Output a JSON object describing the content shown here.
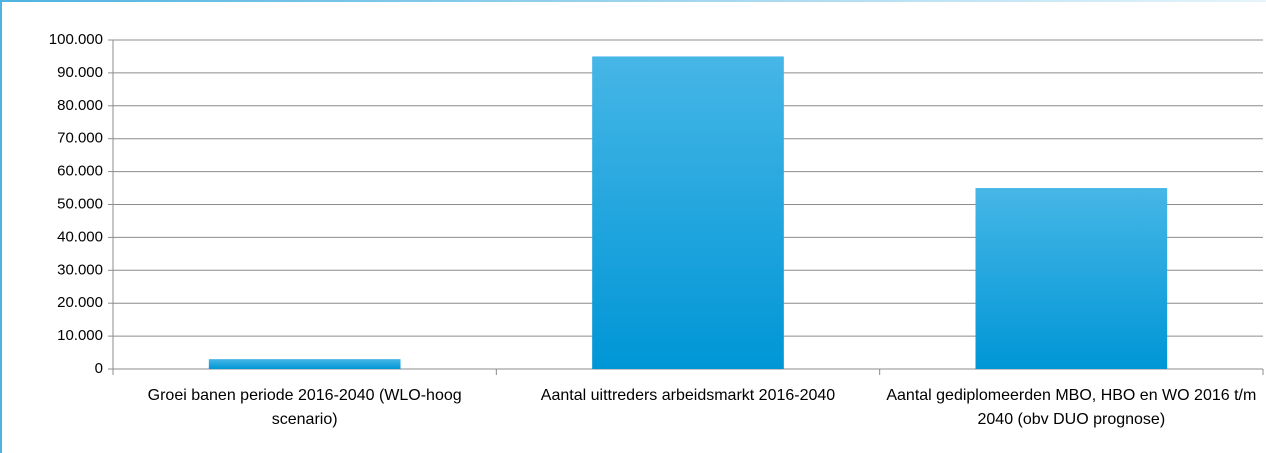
{
  "chart_data": {
    "type": "bar",
    "categories": [
      "Groei banen periode 2016-2040 (WLO-hoog scenario)",
      "Aantal uittreders arbeidsmarkt 2016-2040",
      "Aantal gediplomeerden MBO, HBO en WO 2016 t/m 2040 (obv DUO prognose)"
    ],
    "values": [
      3000,
      95000,
      55000
    ],
    "color": "#0096d6",
    "ylim": [
      0,
      100000
    ],
    "yticks": [
      0,
      {
        "value": 10000,
        "label": "10.000"
      },
      {
        "value": 20000,
        "label": "20.000"
      },
      {
        "value": 30000,
        "label": "30.000"
      },
      {
        "value": 40000,
        "label": "40.000"
      },
      {
        "value": 50000,
        "label": "50.000"
      },
      {
        "value": 60000,
        "label": "60.000"
      },
      {
        "value": 70000,
        "label": "70.000"
      },
      {
        "value": 80000,
        "label": "80.000"
      },
      {
        "value": 90000,
        "label": "90.000"
      },
      {
        "value": 100000,
        "label": "100.000"
      }
    ],
    "grid": true
  }
}
